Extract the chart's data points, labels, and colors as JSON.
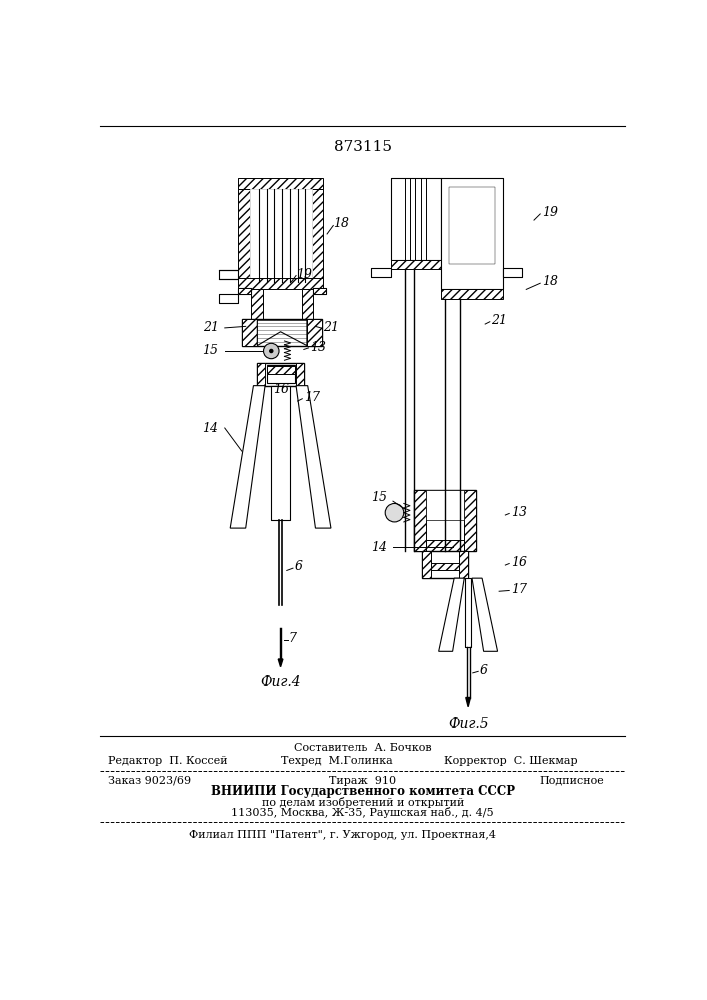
{
  "patent_number": "873115",
  "bg_color": "#ffffff",
  "line_color": "#000000",
  "fig_width": 7.07,
  "fig_height": 10.0,
  "footer": {
    "sostavitel": "Составитель  А. Бочков",
    "redaktor": "Редактор  П. Коссей",
    "tekhred": "Техред  М.Голинка",
    "korrektor": "Корректор  С. Шекмар",
    "zakaz": "Заказ 9023/69",
    "tirazh": "Тираж  910",
    "podpisnoe": "Подписное",
    "vnipi": "ВНИИПИ Государственного комитета СССР",
    "po_delam": "по делам изобретений и открытий",
    "address": "113035, Москва, Ж-35, Раушская наб., д. 4/5",
    "filial": "Филиал ППП \"Патент\", г. Ужгород, ул. Проектная,4"
  },
  "fig4_caption": "Фиг.4",
  "fig5_caption": "Фиг.5"
}
